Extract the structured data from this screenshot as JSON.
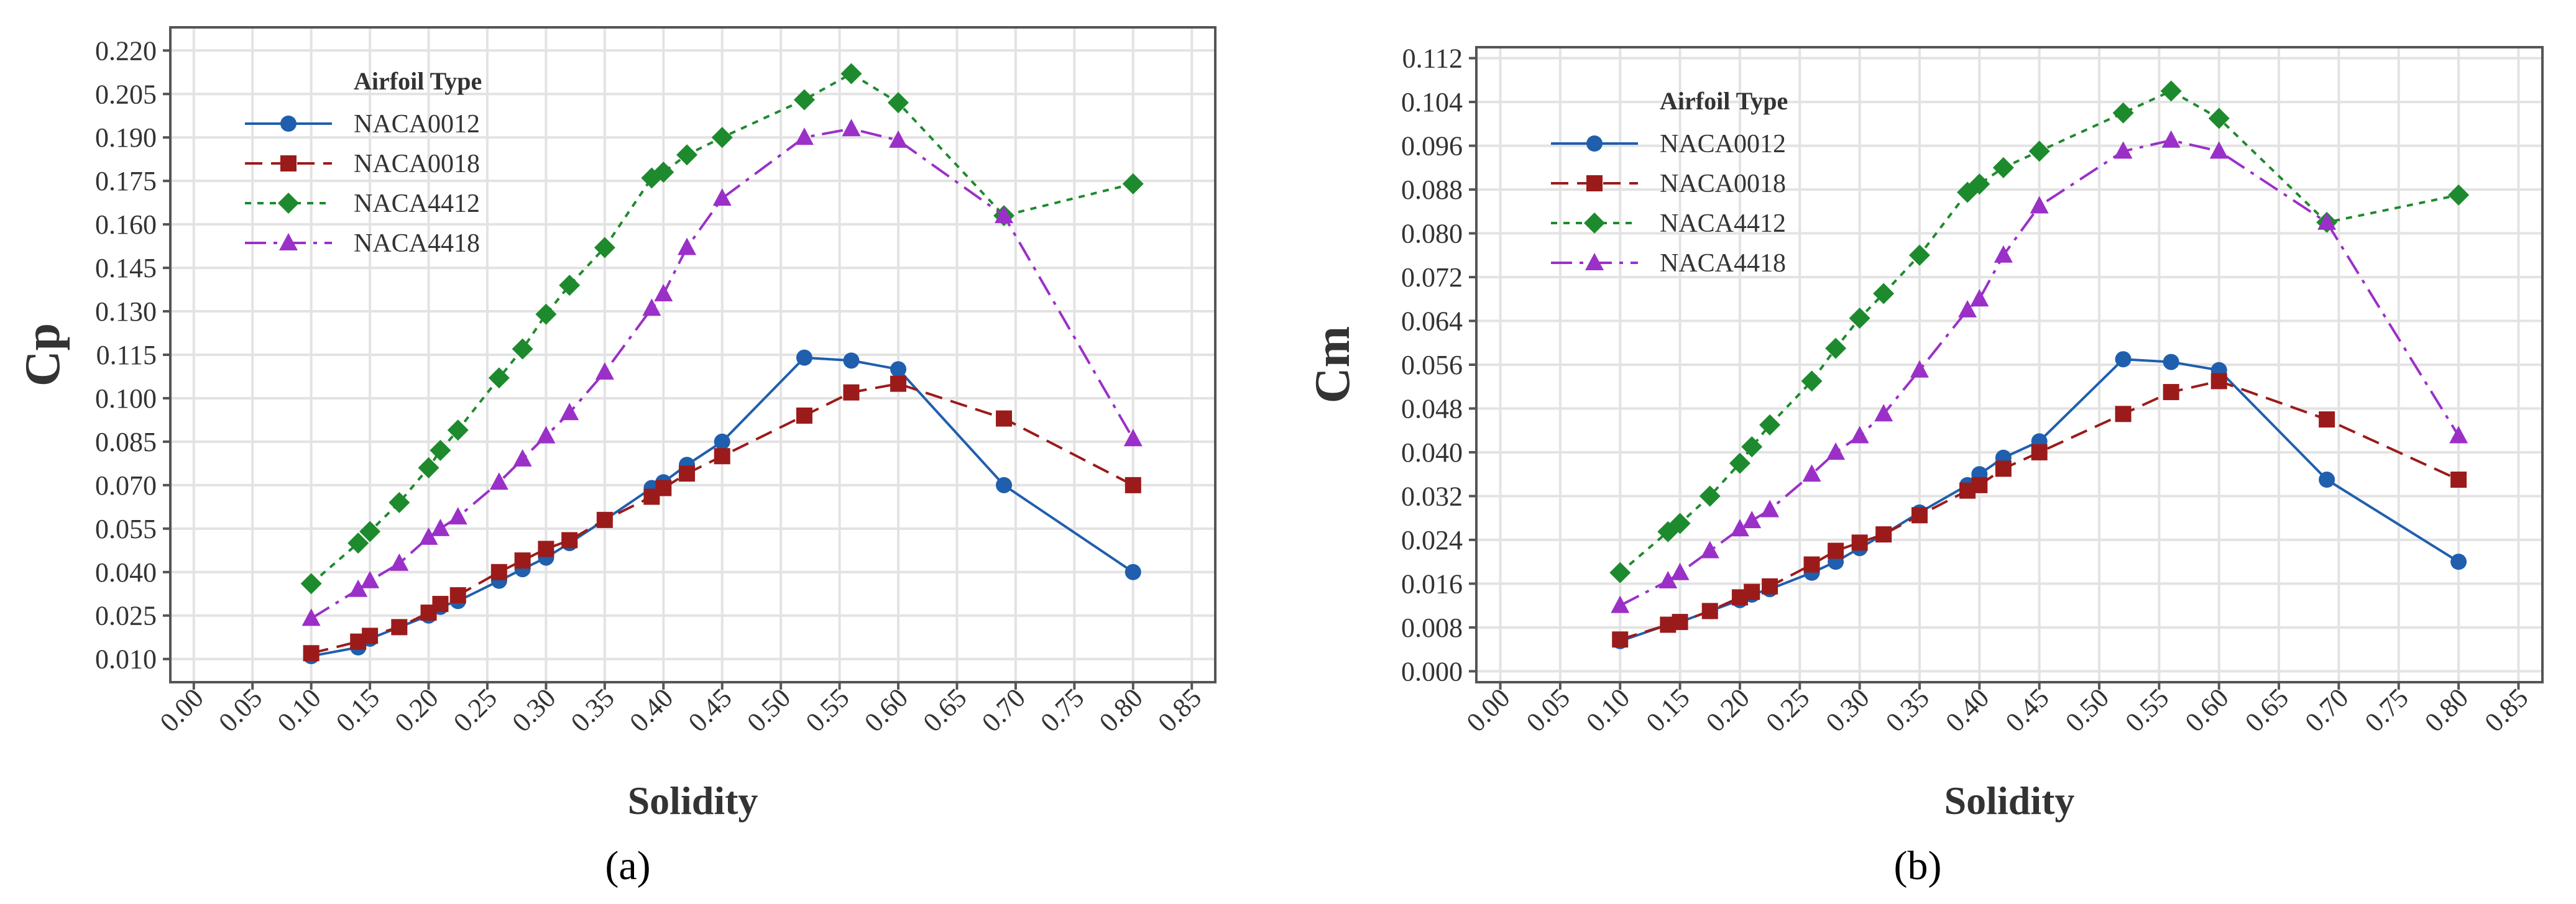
{
  "chart_data": [
    {
      "type": "line",
      "panel_label": "(a)",
      "xlabel": "Solidity",
      "ylabel": "Cp",
      "xlim": [
        -0.02,
        0.87
      ],
      "ylim": [
        0.002,
        0.228
      ],
      "x_ticks": [
        "0.00",
        "0.05",
        "0.10",
        "0.15",
        "0.20",
        "0.25",
        "0.30",
        "0.35",
        "0.40",
        "0.45",
        "0.50",
        "0.55",
        "0.60",
        "0.65",
        "0.70",
        "0.75",
        "0.80",
        "0.85"
      ],
      "y_ticks": [
        "0.010",
        "0.025",
        "0.040",
        "0.055",
        "0.070",
        "0.085",
        "0.100",
        "0.115",
        "0.130",
        "0.145",
        "0.160",
        "0.175",
        "0.190",
        "0.205",
        "0.220"
      ],
      "grid": true,
      "legend_title": "Airfoil Type",
      "legend_position": "top-left",
      "series": [
        {
          "name": "NACA0012",
          "color": "#1f5fad",
          "marker": "circle",
          "line": "solid",
          "x": [
            0.1,
            0.14,
            0.15,
            0.175,
            0.2,
            0.21,
            0.225,
            0.26,
            0.28,
            0.3,
            0.32,
            0.35,
            0.39,
            0.4,
            0.42,
            0.45,
            0.52,
            0.56,
            0.6,
            0.69,
            0.8
          ],
          "y": [
            0.011,
            0.014,
            0.017,
            0.021,
            0.025,
            0.028,
            0.03,
            0.037,
            0.041,
            0.045,
            0.05,
            0.058,
            0.069,
            0.071,
            0.077,
            0.085,
            0.114,
            0.113,
            0.11,
            0.07,
            0.04
          ]
        },
        {
          "name": "NACA0018",
          "color": "#9b1b1b",
          "marker": "square",
          "line": "dashed",
          "x": [
            0.1,
            0.14,
            0.15,
            0.175,
            0.2,
            0.21,
            0.225,
            0.26,
            0.28,
            0.3,
            0.32,
            0.35,
            0.39,
            0.4,
            0.42,
            0.45,
            0.52,
            0.56,
            0.6,
            0.69,
            0.8
          ],
          "y": [
            0.012,
            0.016,
            0.018,
            0.021,
            0.026,
            0.029,
            0.032,
            0.04,
            0.044,
            0.048,
            0.051,
            0.058,
            0.066,
            0.069,
            0.074,
            0.08,
            0.094,
            0.102,
            0.105,
            0.093,
            0.07
          ]
        },
        {
          "name": "NACA4412",
          "color": "#1e8a2e",
          "marker": "diamond",
          "line": "dotted",
          "x": [
            0.1,
            0.14,
            0.15,
            0.175,
            0.2,
            0.21,
            0.225,
            0.26,
            0.28,
            0.3,
            0.32,
            0.35,
            0.39,
            0.4,
            0.42,
            0.45,
            0.52,
            0.56,
            0.6,
            0.69,
            0.8
          ],
          "y": [
            0.036,
            0.05,
            0.054,
            0.064,
            0.076,
            0.082,
            0.089,
            0.107,
            0.117,
            0.129,
            0.139,
            0.152,
            0.176,
            0.178,
            0.184,
            0.19,
            0.203,
            0.212,
            0.202,
            0.163,
            0.174
          ]
        },
        {
          "name": "NACA4418",
          "color": "#9b30c8",
          "marker": "triangle",
          "line": "dashdot",
          "x": [
            0.1,
            0.14,
            0.15,
            0.175,
            0.2,
            0.21,
            0.225,
            0.26,
            0.28,
            0.3,
            0.32,
            0.35,
            0.39,
            0.4,
            0.42,
            0.45,
            0.52,
            0.56,
            0.6,
            0.69,
            0.8
          ],
          "y": [
            0.024,
            0.034,
            0.037,
            0.043,
            0.052,
            0.055,
            0.059,
            0.071,
            0.079,
            0.087,
            0.095,
            0.109,
            0.131,
            0.136,
            0.152,
            0.169,
            0.19,
            0.193,
            0.189,
            0.163,
            0.086
          ]
        }
      ]
    },
    {
      "type": "line",
      "panel_label": "(b)",
      "xlabel": "Solidity",
      "ylabel": "Cm",
      "xlim": [
        -0.02,
        0.87
      ],
      "ylim": [
        -0.002,
        0.114
      ],
      "x_ticks": [
        "0.00",
        "0.05",
        "0.10",
        "0.15",
        "0.20",
        "0.25",
        "0.30",
        "0.35",
        "0.40",
        "0.45",
        "0.50",
        "0.55",
        "0.60",
        "0.65",
        "0.70",
        "0.75",
        "0.80",
        "0.85"
      ],
      "y_ticks": [
        "0.000",
        "0.008",
        "0.016",
        "0.024",
        "0.032",
        "0.040",
        "0.048",
        "0.056",
        "0.064",
        "0.072",
        "0.080",
        "0.088",
        "0.096",
        "0.104",
        "0.112"
      ],
      "grid": true,
      "legend_title": "Airfoil Type",
      "legend_position": "top-left",
      "series": [
        {
          "name": "NACA0012",
          "color": "#1f5fad",
          "marker": "circle",
          "line": "solid",
          "x": [
            0.1,
            0.14,
            0.15,
            0.175,
            0.2,
            0.21,
            0.225,
            0.26,
            0.28,
            0.3,
            0.32,
            0.35,
            0.39,
            0.4,
            0.42,
            0.45,
            0.52,
            0.56,
            0.6,
            0.69,
            0.8
          ],
          "y": [
            0.0055,
            0.0085,
            0.009,
            0.011,
            0.013,
            0.014,
            0.015,
            0.018,
            0.02,
            0.0225,
            0.025,
            0.029,
            0.034,
            0.036,
            0.039,
            0.042,
            0.057,
            0.0565,
            0.055,
            0.035,
            0.02
          ]
        },
        {
          "name": "NACA0018",
          "color": "#9b1b1b",
          "marker": "square",
          "line": "dashed",
          "x": [
            0.1,
            0.14,
            0.15,
            0.175,
            0.2,
            0.21,
            0.225,
            0.26,
            0.28,
            0.3,
            0.32,
            0.35,
            0.39,
            0.4,
            0.42,
            0.45,
            0.52,
            0.56,
            0.6,
            0.69,
            0.8
          ],
          "y": [
            0.0058,
            0.0085,
            0.009,
            0.011,
            0.0135,
            0.0145,
            0.0155,
            0.0195,
            0.022,
            0.0235,
            0.025,
            0.0285,
            0.033,
            0.034,
            0.037,
            0.04,
            0.047,
            0.051,
            0.053,
            0.046,
            0.035
          ]
        },
        {
          "name": "NACA4412",
          "color": "#1e8a2e",
          "marker": "diamond",
          "line": "dotted",
          "x": [
            0.1,
            0.14,
            0.15,
            0.175,
            0.2,
            0.21,
            0.225,
            0.26,
            0.28,
            0.3,
            0.32,
            0.35,
            0.39,
            0.4,
            0.42,
            0.45,
            0.52,
            0.56,
            0.6,
            0.69,
            0.8
          ],
          "y": [
            0.018,
            0.0255,
            0.027,
            0.032,
            0.038,
            0.041,
            0.045,
            0.053,
            0.059,
            0.0645,
            0.069,
            0.076,
            0.0875,
            0.089,
            0.092,
            0.095,
            0.102,
            0.106,
            0.101,
            0.082,
            0.087
          ]
        },
        {
          "name": "NACA4418",
          "color": "#9b30c8",
          "marker": "triangle",
          "line": "dashdot",
          "x": [
            0.1,
            0.14,
            0.15,
            0.175,
            0.2,
            0.21,
            0.225,
            0.26,
            0.28,
            0.3,
            0.32,
            0.35,
            0.39,
            0.4,
            0.42,
            0.45,
            0.52,
            0.56,
            0.6,
            0.69,
            0.8
          ],
          "y": [
            0.012,
            0.0165,
            0.018,
            0.022,
            0.026,
            0.0275,
            0.0295,
            0.036,
            0.04,
            0.043,
            0.047,
            0.055,
            0.066,
            0.068,
            0.076,
            0.085,
            0.095,
            0.097,
            0.095,
            0.082,
            0.043
          ]
        }
      ]
    }
  ]
}
